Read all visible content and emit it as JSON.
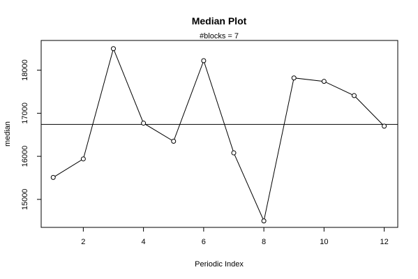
{
  "chart_data": {
    "type": "line",
    "title": "Median Plot",
    "subtitle": "#blocks =  7",
    "xlabel": "Periodic Index",
    "ylabel": "median",
    "x": [
      1,
      2,
      3,
      4,
      5,
      6,
      7,
      8,
      9,
      10,
      11,
      12
    ],
    "y": [
      15510,
      15940,
      18500,
      16770,
      16350,
      18220,
      16080,
      14500,
      17820,
      17740,
      17410,
      16700
    ],
    "reference_line": 16740,
    "xlim": [
      0.6,
      12.45
    ],
    "ylim": [
      14350,
      18690
    ],
    "xticks": [
      2,
      4,
      6,
      8,
      10,
      12
    ],
    "yticks": [
      15000,
      16000,
      17000,
      18000
    ],
    "markers": "open-circle",
    "grid": false,
    "line_color": "#000000"
  }
}
